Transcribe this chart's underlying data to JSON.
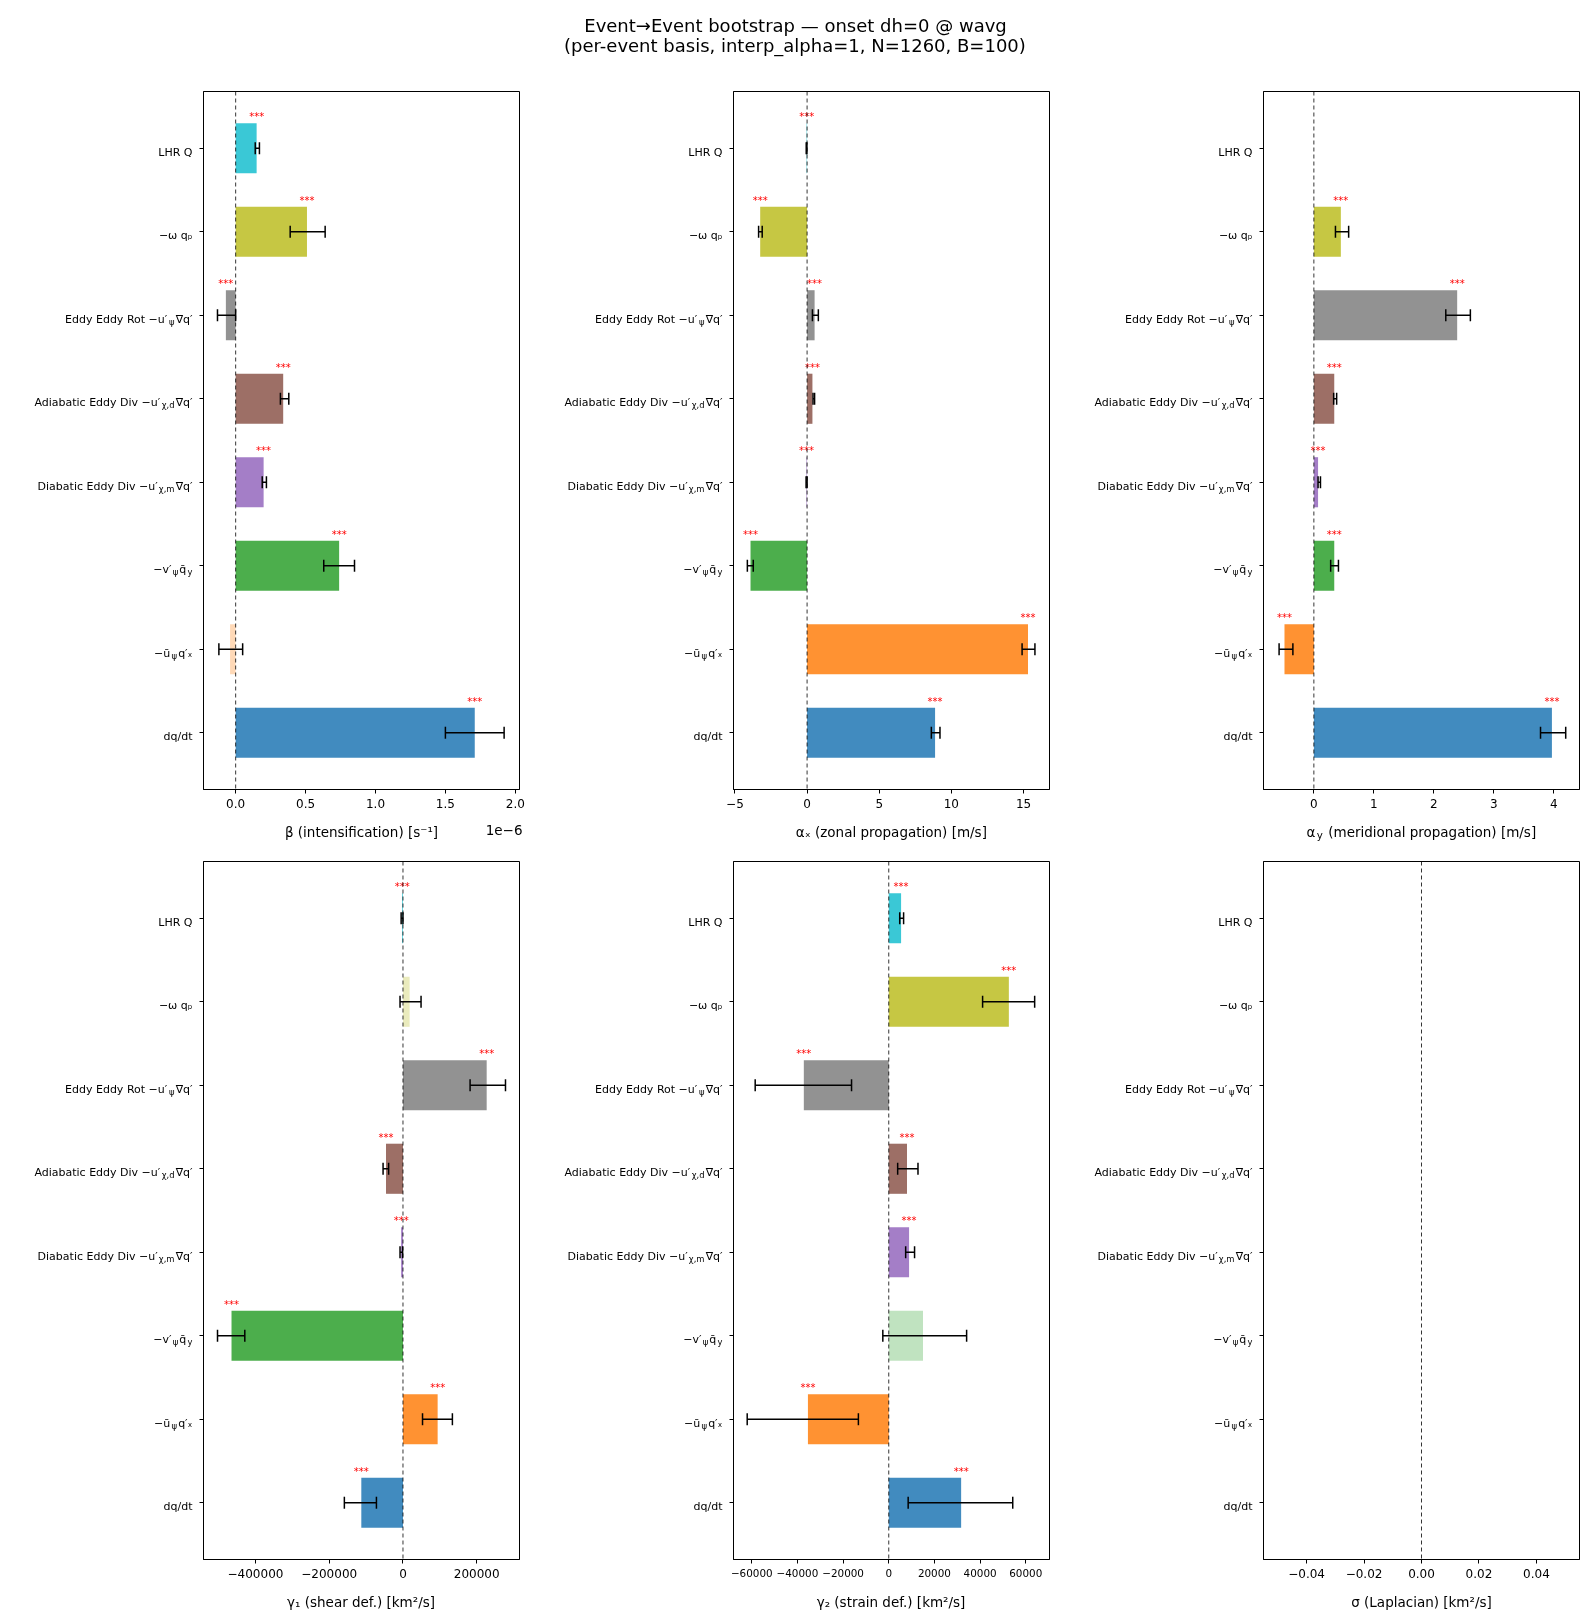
{
  "chart_data": [
    {
      "type": "bar",
      "orientation": "horizontal",
      "xlabel": "β (intensification) [s⁻¹]",
      "categories": [
        "LHR Q",
        "−ω qₚ",
        "Eddy Eddy Rot −u′$_{ψ}$∇q′",
        "Adiabatic Eddy Div −u′$_{χ,d}$∇q′",
        "Diabatic Eddy Div −u′$_{χ,m}$∇q′",
        "−v′$_{ψ}$q̄$_{y}$",
        "−ū$_{ψ}$q′ₓ",
        "dq/dt"
      ],
      "values": [
        0.15,
        0.51,
        -0.07,
        0.34,
        0.2,
        0.74,
        -0.04,
        1.71
      ],
      "colors": [
        "#3ac8d6",
        "#c6c743",
        "#929292",
        "#9d6f66",
        "#a47ec7",
        "#4cae4c",
        "#ffd9b7",
        "#418bbf"
      ],
      "errors": [
        [
          0.14,
          0.17
        ],
        [
          0.39,
          0.64
        ],
        [
          -0.13,
          0.0
        ],
        [
          0.32,
          0.38
        ],
        [
          0.19,
          0.22
        ],
        [
          0.63,
          0.85
        ],
        [
          -0.12,
          0.05
        ],
        [
          1.5,
          1.92
        ]
      ],
      "value_labels": [
        "***",
        "***",
        "***",
        "***",
        "***",
        "***",
        null,
        "***"
      ],
      "xlim": [
        -0.23,
        2.03
      ],
      "xticks": [
        {
          "value": 0,
          "label": "0.0"
        },
        0.5,
        {
          "value": 1,
          "label": "1.0"
        },
        1.5,
        {
          "value": 2,
          "label": "2.0"
        }
      ],
      "ref_lines": [
        {
          "axis": "x",
          "value": 0,
          "color": "#000000",
          "line_style": "dashed"
        }
      ],
      "annotations": [
        "1e−6"
      ]
    },
    {
      "type": "bar",
      "orientation": "horizontal",
      "title": "Event→Event bootstrap — onset dh=0 @ wavg",
      "subtitle": "(per-event basis, interp_alpha=1, N=1260, B=100)",
      "xlabel": "αₓ (zonal propagation) [m/s]",
      "categories": [
        "LHR Q",
        "−ω qₚ",
        "Eddy Eddy Rot −u′$_{ψ}$∇q′",
        "Adiabatic Eddy Div −u′$_{χ,d}$∇q′",
        "Diabatic Eddy Div −u′$_{χ,m}$∇q′",
        "−v′$_{ψ}$q̄$_{y}$",
        "−ū$_{ψ}$q′ₓ",
        "dq/dt"
      ],
      "values": [
        -0.03,
        -3.25,
        0.52,
        0.37,
        -0.04,
        -3.92,
        15.31,
        8.87
      ],
      "colors": [
        "#3ac8d6",
        "#c6c743",
        "#929292",
        "#9d6f66",
        "#a47ec7",
        "#4cae4c",
        "#ff9232",
        "#418bbf"
      ],
      "errors": [
        [
          -0.06,
          -0.01
        ],
        [
          -3.36,
          -3.11
        ],
        [
          0.37,
          0.78
        ],
        [
          0.41,
          0.52
        ],
        [
          -0.07,
          0.0
        ],
        [
          -4.14,
          -3.73
        ],
        [
          14.9,
          15.79
        ],
        [
          8.61,
          9.21
        ]
      ],
      "value_labels": [
        "***",
        "***",
        "***",
        "***",
        "***",
        "***",
        "***",
        "***"
      ],
      "xlim": [
        -5.1,
        16.8
      ],
      "xticks": [
        {
          "value": -5,
          "label": "−5"
        },
        0,
        5,
        10,
        15
      ],
      "ref_lines": [
        {
          "axis": "x",
          "value": 0,
          "color": "#000000",
          "line_style": "dashed"
        }
      ]
    },
    {
      "type": "bar",
      "orientation": "horizontal",
      "xlabel": "α$_{y}$ (meridional propagation) [m/s]",
      "categories": [
        "LHR Q",
        "−ω qₚ",
        "Eddy Eddy Rot −u′$_{ψ}$∇q′",
        "Adiabatic Eddy Div −u′$_{χ,d}$∇q′",
        "Diabatic Eddy Div −u′$_{χ,m}$∇q′",
        "−v′$_{ψ}$q̄$_{y}$",
        "−ū$_{ψ}$q′ₓ",
        "dq/dt"
      ],
      "values": [
        0.0,
        0.45,
        2.39,
        0.34,
        0.07,
        0.34,
        -0.49,
        3.97
      ],
      "colors": [
        "#b9ebf1",
        "#c6c743",
        "#929292",
        "#9d6f66",
        "#a47ec7",
        "#4cae4c",
        "#ff9232",
        "#418bbf"
      ],
      "errors": [
        null,
        [
          0.36,
          0.58
        ],
        [
          2.2,
          2.61
        ],
        [
          0.33,
          0.38
        ],
        [
          0.07,
          0.11
        ],
        [
          0.28,
          0.41
        ],
        [
          -0.58,
          -0.35
        ],
        [
          3.78,
          4.2
        ]
      ],
      "value_labels": [
        null,
        "***",
        "***",
        "***",
        "***",
        "***",
        "***",
        "***"
      ],
      "xlim": [
        -0.84,
        4.43
      ],
      "xticks": [
        0,
        1,
        2,
        3,
        4
      ],
      "ref_lines": [
        {
          "axis": "x",
          "value": 0,
          "color": "#000000",
          "line_style": "dashed"
        }
      ]
    },
    {
      "type": "bar",
      "orientation": "horizontal",
      "xlabel": "γ₁ (shear def.) [km²/s]",
      "categories": [
        "LHR Q",
        "−ω qₚ",
        "Eddy Eddy Rot −u′$_{ψ}$∇q′",
        "Adiabatic Eddy Div −u′$_{χ,d}$∇q′",
        "Diabatic Eddy Div −u′$_{χ,m}$∇q′",
        "−v′$_{ψ}$q̄$_{y}$",
        "−ū$_{ψ}$q′ₓ",
        "dq/dt"
      ],
      "values": [
        -2000,
        18000,
        227000,
        -46000,
        -5000,
        -465000,
        94000,
        -113000
      ],
      "colors": [
        "#3ac8d6",
        "#eaebbd",
        "#929292",
        "#9d6f66",
        "#a47ec7",
        "#4cae4c",
        "#ff9232",
        "#418bbf"
      ],
      "errors": [
        [
          -5000,
          0
        ],
        [
          -8000,
          49000
        ],
        [
          182000,
          278000
        ],
        [
          -54000,
          -39000
        ],
        [
          -8000,
          -1000
        ],
        [
          -503000,
          -429000
        ],
        [
          53000,
          134000
        ],
        [
          -159000,
          -72000
        ]
      ],
      "value_labels": [
        "***",
        null,
        "***",
        "***",
        "***",
        "***",
        "***",
        "***"
      ],
      "xlim": [
        -541000,
        316000
      ],
      "xticks": [
        {
          "value": -400000,
          "label": "−400000"
        },
        {
          "value": -200000,
          "label": "−200000"
        },
        0,
        200000
      ],
      "ref_lines": [
        {
          "axis": "x",
          "value": 0,
          "color": "#000000",
          "line_style": "dashed"
        }
      ]
    },
    {
      "type": "bar",
      "orientation": "horizontal",
      "xlabel": "γ₂ (strain def.) [km²/s]",
      "categories": [
        "LHR Q",
        "−ω qₚ",
        "Eddy Eddy Rot −u′$_{ψ}$∇q′",
        "Adiabatic Eddy Div −u′$_{χ,d}$∇q′",
        "Diabatic Eddy Div −u′$_{χ,m}$∇q′",
        "−v′$_{ψ}$q̄$_{y}$",
        "−ū$_{ψ}$q′ₓ",
        "dq/dt"
      ],
      "values": [
        5400,
        52600,
        -37200,
        8000,
        8900,
        15000,
        -35400,
        31700
      ],
      "colors": [
        "#3ac8d6",
        "#c6c743",
        "#929292",
        "#9d6f66",
        "#a47ec7",
        "#c0e3c0",
        "#ff9232",
        "#418bbf"
      ],
      "errors": [
        [
          4800,
          6500
        ],
        [
          41100,
          63900
        ],
        [
          -58500,
          -16300
        ],
        [
          3900,
          12800
        ],
        [
          7400,
          11300
        ],
        [
          -2600,
          34100
        ],
        [
          -62000,
          -13300
        ],
        [
          8500,
          54300
        ]
      ],
      "value_labels": [
        "***",
        "***",
        "***",
        "***",
        "***",
        null,
        "***",
        "***"
      ],
      "xlim": [
        -68000,
        70400
      ],
      "xticks": [
        {
          "value": -60000,
          "label": "−60000"
        },
        {
          "value": -40000,
          "label": "−40000"
        },
        {
          "value": -20000,
          "label": "−20000"
        },
        0,
        20000,
        40000,
        60000
      ],
      "ref_lines": [
        {
          "axis": "x",
          "value": 0,
          "color": "#000000",
          "line_style": "dashed"
        }
      ]
    },
    {
      "type": "bar",
      "orientation": "horizontal",
      "xlabel": "σ (Laplacian) [km²/s]",
      "categories": [
        "LHR Q",
        "−ω qₚ",
        "Eddy Eddy Rot −u′$_{ψ}$∇q′",
        "Adiabatic Eddy Div −u′$_{χ,d}$∇q′",
        "Diabatic Eddy Div −u′$_{χ,m}$∇q′",
        "−v′$_{ψ}$q̄$_{y}$",
        "−ū$_{ψ}$q′ₓ",
        "dq/dt"
      ],
      "values": [
        0,
        0,
        0,
        0,
        0,
        0,
        0,
        0
      ],
      "xlim": [
        -0.055,
        0.055
      ],
      "xticks": [
        {
          "value": -0.04,
          "label": "−0.04"
        },
        {
          "value": -0.02,
          "label": "−0.02"
        },
        {
          "value": 0,
          "label": "0.00"
        },
        0.02,
        0.04
      ],
      "ref_lines": [
        {
          "axis": "x",
          "value": 0,
          "color": "#000000",
          "line_style": "dashed"
        }
      ]
    }
  ]
}
